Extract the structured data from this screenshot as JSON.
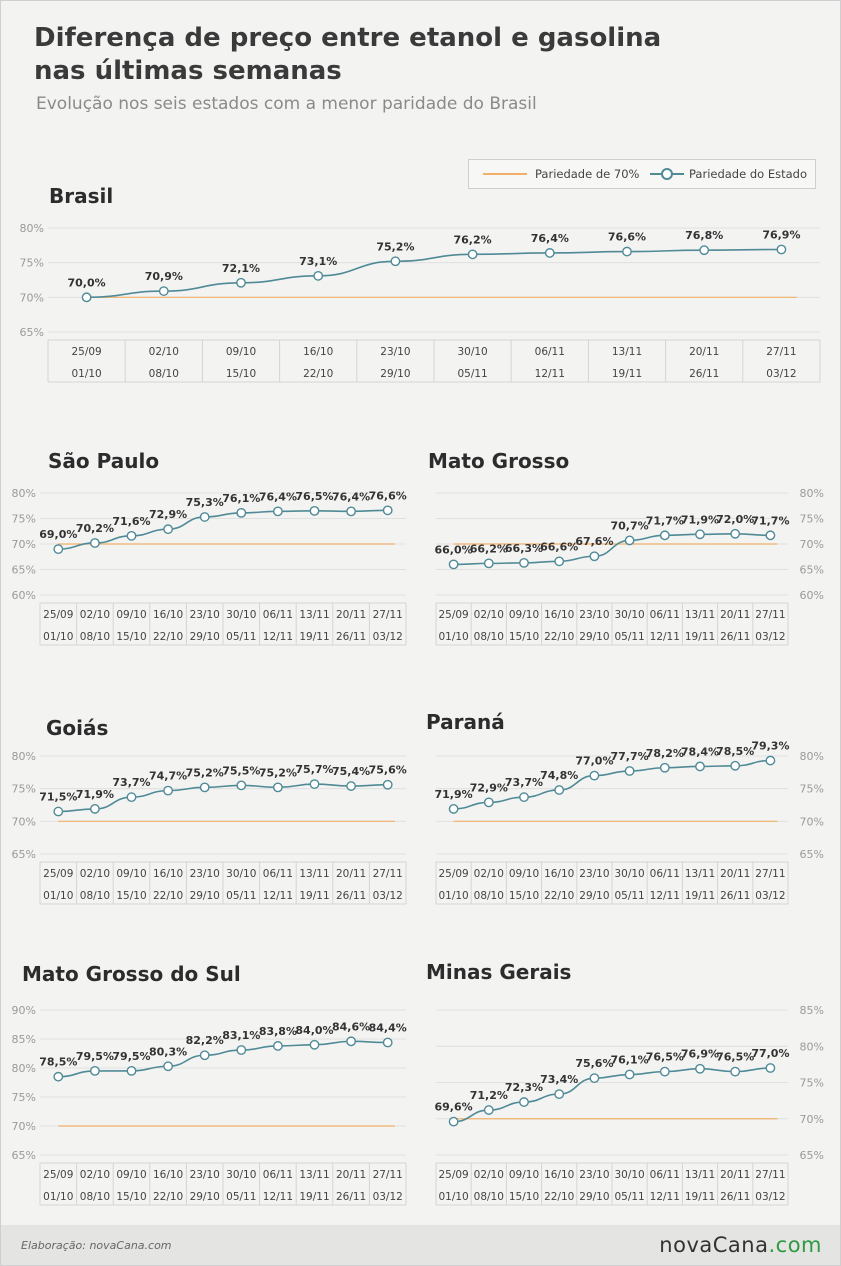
{
  "header": {
    "title_line1": "Diferença de preço entre etanol e gasolina",
    "title_line2": "nas últimas semanas",
    "subtitle": "Evolução nos seis estados com a menor paridade do Brasil"
  },
  "legend": {
    "reference_label": "Pariedade de 70%",
    "series_label": "Pariedade do Estado"
  },
  "colors": {
    "series": "#4f8a96",
    "reference": "#f0b069",
    "grid": "#e0e0e0",
    "label": "#333333"
  },
  "footer": {
    "credit": "Elaboração: novaCana.com",
    "logo_main": "novaCana",
    "logo_suffix": ".com"
  },
  "chart_data": [
    {
      "type": "line",
      "title": "Brasil",
      "categories": [
        [
          "25/09",
          "01/10"
        ],
        [
          "02/10",
          "08/10"
        ],
        [
          "09/10",
          "15/10"
        ],
        [
          "16/10",
          "22/10"
        ],
        [
          "23/10",
          "29/10"
        ],
        [
          "30/10",
          "05/11"
        ],
        [
          "06/11",
          "12/11"
        ],
        [
          "13/11",
          "19/11"
        ],
        [
          "20/11",
          "26/11"
        ],
        [
          "27/11",
          "03/12"
        ]
      ],
      "values": [
        70.0,
        70.9,
        72.1,
        73.1,
        75.2,
        76.2,
        76.4,
        76.6,
        76.8,
        76.9
      ],
      "value_labels": [
        "70,0%",
        "70,9%",
        "72,1%",
        "73,1%",
        "75,2%",
        "76,2%",
        "76,4%",
        "76,6%",
        "76,8%",
        "76,9%"
      ],
      "reference": 70,
      "ylim": [
        65,
        80
      ],
      "yticks": [
        65,
        70,
        75,
        80
      ],
      "ytick_labels": [
        "65%",
        "70%",
        "75%",
        "80%"
      ],
      "yaxis_side": "left"
    },
    {
      "type": "line",
      "title": "São Paulo",
      "categories": [
        [
          "25/09",
          "01/10"
        ],
        [
          "02/10",
          "08/10"
        ],
        [
          "09/10",
          "15/10"
        ],
        [
          "16/10",
          "22/10"
        ],
        [
          "23/10",
          "29/10"
        ],
        [
          "30/10",
          "05/11"
        ],
        [
          "06/11",
          "12/11"
        ],
        [
          "13/11",
          "19/11"
        ],
        [
          "20/11",
          "26/11"
        ],
        [
          "27/11",
          "03/12"
        ]
      ],
      "values": [
        69.0,
        70.2,
        71.6,
        72.9,
        75.3,
        76.1,
        76.4,
        76.5,
        76.4,
        76.6
      ],
      "value_labels": [
        "69,0%",
        "70,2%",
        "71,6%",
        "72,9%",
        "75,3%",
        "76,1%",
        "76,4%",
        "76,5%",
        "76,4%",
        "76,6%"
      ],
      "reference": 70,
      "ylim": [
        60,
        80
      ],
      "yticks": [
        60,
        65,
        70,
        75,
        80
      ],
      "ytick_labels": [
        "60%",
        "65%",
        "70%",
        "75%",
        "80%"
      ],
      "yaxis_side": "left"
    },
    {
      "type": "line",
      "title": "Mato Grosso",
      "categories": [
        [
          "25/09",
          "01/10"
        ],
        [
          "02/10",
          "08/10"
        ],
        [
          "09/10",
          "15/10"
        ],
        [
          "16/10",
          "22/10"
        ],
        [
          "23/10",
          "29/10"
        ],
        [
          "30/10",
          "05/11"
        ],
        [
          "06/11",
          "12/11"
        ],
        [
          "13/11",
          "19/11"
        ],
        [
          "20/11",
          "26/11"
        ],
        [
          "27/11",
          "03/12"
        ]
      ],
      "values": [
        66.0,
        66.2,
        66.3,
        66.6,
        67.6,
        70.7,
        71.7,
        71.9,
        72.0,
        71.7
      ],
      "value_labels": [
        "66,0%",
        "66,2%",
        "66,3%",
        "66,6%",
        "67,6%",
        "70,7%",
        "71,7%",
        "71,9%",
        "72,0%",
        "71,7%"
      ],
      "reference": 70,
      "ylim": [
        60,
        80
      ],
      "yticks": [
        60,
        65,
        70,
        75,
        80
      ],
      "ytick_labels": [
        "60%",
        "65%",
        "70%",
        "75%",
        "80%"
      ],
      "yaxis_side": "right"
    },
    {
      "type": "line",
      "title": "Goiás",
      "categories": [
        [
          "25/09",
          "01/10"
        ],
        [
          "02/10",
          "08/10"
        ],
        [
          "09/10",
          "15/10"
        ],
        [
          "16/10",
          "22/10"
        ],
        [
          "23/10",
          "29/10"
        ],
        [
          "30/10",
          "05/11"
        ],
        [
          "06/11",
          "12/11"
        ],
        [
          "13/11",
          "19/11"
        ],
        [
          "20/11",
          "26/11"
        ],
        [
          "27/11",
          "03/12"
        ]
      ],
      "values": [
        71.5,
        71.9,
        73.7,
        74.7,
        75.2,
        75.5,
        75.2,
        75.7,
        75.4,
        75.6
      ],
      "value_labels": [
        "71,5%",
        "71,9%",
        "73,7%",
        "74,7%",
        "75,2%",
        "75,5%",
        "75,2%",
        "75,7%",
        "75,4%",
        "75,6%"
      ],
      "reference": 70,
      "ylim": [
        65,
        80
      ],
      "yticks": [
        65,
        70,
        75,
        80
      ],
      "ytick_labels": [
        "65%",
        "70%",
        "75%",
        "80%"
      ],
      "yaxis_side": "left"
    },
    {
      "type": "line",
      "title": "Paraná",
      "categories": [
        [
          "25/09",
          "01/10"
        ],
        [
          "02/10",
          "08/10"
        ],
        [
          "09/10",
          "15/10"
        ],
        [
          "16/10",
          "22/10"
        ],
        [
          "23/10",
          "29/10"
        ],
        [
          "30/10",
          "05/11"
        ],
        [
          "06/11",
          "12/11"
        ],
        [
          "13/11",
          "19/11"
        ],
        [
          "20/11",
          "26/11"
        ],
        [
          "27/11",
          "03/12"
        ]
      ],
      "values": [
        71.9,
        72.9,
        73.7,
        74.8,
        77.0,
        77.7,
        78.2,
        78.4,
        78.5,
        79.3
      ],
      "value_labels": [
        "71,9%",
        "72,9%",
        "73,7%",
        "74,8%",
        "77,0%",
        "77,7%",
        "78,2%",
        "78,4%",
        "78,5%",
        "79,3%"
      ],
      "reference": 70,
      "ylim": [
        65,
        80
      ],
      "yticks": [
        65,
        70,
        75,
        80
      ],
      "ytick_labels": [
        "65%",
        "70%",
        "75%",
        "80%"
      ],
      "yaxis_side": "right"
    },
    {
      "type": "line",
      "title": "Mato Grosso do Sul",
      "categories": [
        [
          "25/09",
          "01/10"
        ],
        [
          "02/10",
          "08/10"
        ],
        [
          "09/10",
          "15/10"
        ],
        [
          "16/10",
          "22/10"
        ],
        [
          "23/10",
          "29/10"
        ],
        [
          "30/10",
          "05/11"
        ],
        [
          "06/11",
          "12/11"
        ],
        [
          "13/11",
          "19/11"
        ],
        [
          "20/11",
          "26/11"
        ],
        [
          "27/11",
          "03/12"
        ]
      ],
      "values": [
        78.5,
        79.5,
        79.5,
        80.3,
        82.2,
        83.1,
        83.8,
        84.0,
        84.6,
        84.4
      ],
      "value_labels": [
        "78,5%",
        "79,5%",
        "79,5%",
        "80,3%",
        "82,2%",
        "83,1%",
        "83,8%",
        "84,0%",
        "84,6%",
        "84,4%"
      ],
      "reference": 70,
      "ylim": [
        65,
        90
      ],
      "yticks": [
        65,
        70,
        75,
        80,
        85,
        90
      ],
      "ytick_labels": [
        "65%",
        "70%",
        "75%",
        "80%",
        "85%",
        "90%"
      ],
      "yaxis_side": "left"
    },
    {
      "type": "line",
      "title": "Minas Gerais",
      "categories": [
        [
          "25/09",
          "01/10"
        ],
        [
          "02/10",
          "08/10"
        ],
        [
          "09/10",
          "15/10"
        ],
        [
          "16/10",
          "22/10"
        ],
        [
          "23/10",
          "29/10"
        ],
        [
          "30/10",
          "05/11"
        ],
        [
          "06/11",
          "12/11"
        ],
        [
          "13/11",
          "19/11"
        ],
        [
          "20/11",
          "26/11"
        ],
        [
          "27/11",
          "03/12"
        ]
      ],
      "values": [
        69.6,
        71.2,
        72.3,
        73.4,
        75.6,
        76.1,
        76.5,
        76.9,
        76.5,
        77.0
      ],
      "value_labels": [
        "69,6%",
        "71,2%",
        "72,3%",
        "73,4%",
        "75,6%",
        "76,1%",
        "76,5%",
        "76,9%",
        "76,5%",
        "77,0%"
      ],
      "reference": 70,
      "ylim": [
        65,
        85
      ],
      "yticks": [
        65,
        70,
        75,
        80,
        85
      ],
      "ytick_labels": [
        "65%",
        "70%",
        "75%",
        "80%",
        "85%"
      ],
      "yaxis_side": "right"
    }
  ]
}
